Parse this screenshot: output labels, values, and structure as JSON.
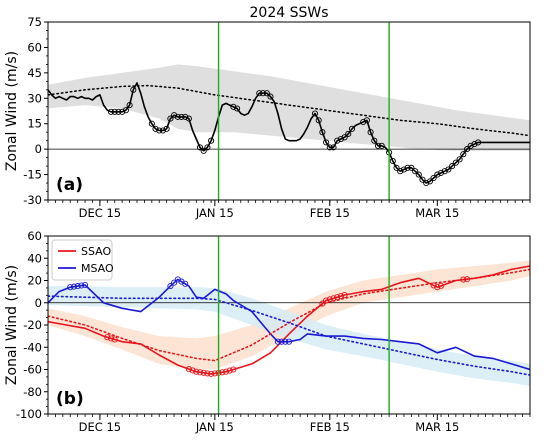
{
  "figure": {
    "title": "2024 SSWs",
    "ylabel": "Zonal Wind (m/s)"
  },
  "chart_data": [
    {
      "type": "line",
      "panel_label": "(a)",
      "title": "2024 SSWs",
      "ylabel": "Zonal Wind (m/s)",
      "xlabel": "",
      "x_unit": "day index (0 = Nov 22, 2023)",
      "xlim": [
        0,
        130
      ],
      "ylim": [
        -30,
        75
      ],
      "yticks": [
        -30,
        -15,
        0,
        15,
        30,
        45,
        60,
        75
      ],
      "xticks": [
        {
          "day": 14,
          "label": "DEC 15"
        },
        {
          "day": 45,
          "label": "JAN 15"
        },
        {
          "day": 76,
          "label": "FEB 15"
        },
        {
          "day": 105,
          "label": "MAR 15"
        }
      ],
      "grid": false,
      "zero_line": true,
      "event_lines": [
        46,
        92
      ],
      "event_line_color": "#22aa22",
      "band": {
        "color": "#d9d9d9",
        "x": [
          0,
          10,
          20,
          30,
          35,
          40,
          50,
          60,
          70,
          80,
          90,
          100,
          110,
          120,
          130
        ],
        "upper": [
          38,
          42,
          45,
          48,
          50,
          49,
          46,
          43,
          39,
          35,
          31,
          27,
          23,
          20,
          17
        ],
        "lower": [
          24,
          26,
          24,
          18,
          12,
          10,
          10,
          8,
          6,
          4,
          2,
          0,
          -1,
          -1,
          -1
        ]
      },
      "climatology": {
        "style": "dotted",
        "color": "#000000",
        "x": [
          0,
          10,
          20,
          27,
          35,
          45,
          55,
          65,
          75,
          85,
          95,
          105,
          115,
          125,
          130
        ],
        "y": [
          32,
          35,
          37,
          37.5,
          36,
          32,
          29,
          26,
          23,
          20,
          17,
          15,
          12,
          9.5,
          8
        ]
      },
      "series": [
        {
          "style": "solid",
          "color": "#000000",
          "x": [
            0,
            1,
            2,
            3,
            4,
            5,
            6,
            7,
            8,
            9,
            10,
            11,
            12,
            13,
            14,
            15,
            16,
            17,
            18,
            19,
            20,
            21,
            22,
            23,
            24,
            25,
            26,
            27,
            28,
            29,
            30,
            31,
            32,
            33,
            34,
            35,
            36,
            37,
            38,
            39,
            40,
            41,
            42,
            43,
            44,
            45,
            46,
            47,
            48,
            49,
            50,
            51,
            52,
            53,
            54,
            55,
            56,
            57,
            58,
            59,
            60,
            61,
            62,
            63,
            64,
            65,
            66,
            67,
            68,
            69,
            70,
            71,
            72,
            73,
            74,
            75,
            76,
            77,
            78,
            79,
            80,
            81,
            82,
            83,
            84,
            85,
            86,
            87,
            88,
            89,
            90,
            91,
            92,
            93,
            94,
            95,
            96,
            97,
            98,
            99,
            100,
            101,
            102,
            103,
            104,
            105,
            106,
            107,
            108,
            109,
            110,
            111,
            112,
            113,
            114,
            115,
            116,
            117,
            118,
            119,
            120,
            121,
            122,
            123,
            124,
            125,
            126,
            127,
            128,
            129,
            130
          ],
          "y": [
            35,
            32,
            30,
            31,
            30,
            29,
            31,
            31,
            30,
            31,
            30,
            30,
            29,
            31,
            32,
            26,
            23,
            22,
            22,
            22,
            22,
            23,
            26,
            35,
            39,
            33,
            25,
            19,
            15,
            12,
            11,
            11,
            12,
            18,
            20,
            19,
            19,
            19,
            18,
            11,
            6,
            1,
            -1,
            1,
            5,
            11,
            19,
            26,
            27,
            26,
            25,
            24,
            21,
            20,
            21,
            25,
            30,
            33,
            33,
            33,
            31,
            28,
            21,
            12,
            6,
            5,
            5,
            5,
            6,
            9,
            13,
            18,
            21,
            17,
            10,
            4,
            1,
            1,
            5,
            6,
            7,
            9,
            12,
            14,
            15,
            16,
            17,
            10,
            5,
            2,
            2,
            1,
            -2,
            -7,
            -11,
            -13,
            -12,
            -11,
            -11,
            -13,
            -15,
            -18,
            -20,
            -19,
            -17,
            -15,
            -14,
            -13,
            -12,
            -10,
            -8,
            -6,
            -3,
            0,
            2,
            3,
            4,
            4,
            4,
            4,
            4,
            4,
            4,
            4,
            4,
            4,
            4,
            4,
            4,
            4,
            4
          ],
          "marker_ranges": [
            [
              17,
              23
            ],
            [
              28,
              38
            ],
            [
              41,
              44
            ],
            [
              50,
              51
            ],
            [
              57,
              60
            ],
            [
              72,
              82
            ],
            [
              85,
              90
            ],
            [
              92,
              109
            ],
            [
              110,
              116
            ]
          ]
        }
      ]
    },
    {
      "type": "line",
      "panel_label": "(b)",
      "ylabel": "Zonal Wind (m/s)",
      "xlabel": "",
      "x_unit": "day index (0 = Nov 22, 2023)",
      "xlim": [
        0,
        130
      ],
      "ylim": [
        -100,
        60
      ],
      "yticks": [
        -100,
        -80,
        -60,
        -40,
        -20,
        0,
        20,
        40,
        60
      ],
      "xticks": [
        {
          "day": 14,
          "label": "DEC 15"
        },
        {
          "day": 45,
          "label": "JAN 15"
        },
        {
          "day": 76,
          "label": "FEB 15"
        },
        {
          "day": 105,
          "label": "MAR 15"
        }
      ],
      "grid": false,
      "zero_line": true,
      "event_lines": [
        46,
        92
      ],
      "event_line_color": "#22aa22",
      "legend": {
        "placement": "top-left",
        "entries": [
          "SSAO",
          "MSAO"
        ]
      },
      "bands": [
        {
          "color": "#fbe1cc",
          "x": [
            0,
            10,
            20,
            30,
            40,
            45,
            55,
            65,
            75,
            85,
            95,
            105,
            115,
            125,
            130
          ],
          "upper": [
            -5,
            -12,
            -22,
            -30,
            -32,
            -30,
            -20,
            -5,
            10,
            20,
            25,
            30,
            33,
            36,
            38
          ],
          "lower": [
            -20,
            -30,
            -42,
            -55,
            -60,
            -60,
            -48,
            -30,
            -12,
            0,
            5,
            10,
            15,
            20,
            24
          ]
        },
        {
          "color": "#d6ebf5",
          "x": [
            0,
            10,
            20,
            30,
            40,
            45,
            55,
            65,
            75,
            85,
            95,
            105,
            115,
            125,
            130
          ],
          "upper": [
            15,
            15,
            14,
            14,
            14,
            13,
            4,
            -8,
            -20,
            -28,
            -35,
            -42,
            -48,
            -52,
            -55
          ],
          "lower": [
            -2,
            -3,
            -4,
            -5,
            -6,
            -8,
            -20,
            -32,
            -42,
            -48,
            -55,
            -62,
            -68,
            -72,
            -75
          ]
        }
      ],
      "series": [
        {
          "name": "SSAO",
          "color": "#e8141c",
          "style": "solid",
          "x": [
            0,
            5,
            10,
            15,
            20,
            25,
            30,
            35,
            40,
            44,
            46,
            48,
            50,
            55,
            60,
            63,
            65,
            70,
            75,
            80,
            85,
            90,
            95,
            100,
            105,
            110,
            115,
            120,
            125,
            130
          ],
          "y": [
            -17,
            -20,
            -23,
            -30,
            -35,
            -37,
            -47,
            -56,
            -62,
            -64,
            -63,
            -62,
            -60,
            -55,
            -45,
            -35,
            -28,
            -12,
            2,
            7,
            10,
            12,
            18,
            22,
            14,
            20,
            22,
            25,
            30,
            33
          ],
          "marker_ranges": [
            [
              16,
              18
            ],
            [
              38,
              50
            ],
            [
              74,
              80
            ],
            [
              104,
              106
            ],
            [
              112,
              113
            ]
          ]
        },
        {
          "name": "MSAO",
          "color": "#1a1ad6",
          "style": "solid",
          "x": [
            0,
            3,
            6,
            10,
            15,
            20,
            25,
            30,
            33,
            35,
            38,
            40,
            42,
            45,
            48,
            50,
            55,
            58,
            60,
            62,
            65,
            68,
            70,
            75,
            80,
            85,
            90,
            95,
            100,
            105,
            110,
            115,
            120,
            125,
            130
          ],
          "y": [
            0,
            10,
            14,
            16,
            0,
            -5,
            -8,
            5,
            15,
            21,
            15,
            5,
            4,
            12,
            8,
            2,
            -8,
            -20,
            -28,
            -35,
            -35,
            -33,
            -28,
            -30,
            -30,
            -32,
            -33,
            -35,
            -37,
            -45,
            -40,
            -48,
            -50,
            -55,
            -60
          ],
          "marker_ranges": [
            [
              6,
              10
            ],
            [
              33,
              37
            ],
            [
              62,
              65
            ]
          ]
        },
        {
          "name": "",
          "color": "#e8141c",
          "style": "dotted",
          "x": [
            0,
            10,
            20,
            30,
            40,
            45,
            55,
            65,
            75,
            85,
            95,
            105,
            115,
            125,
            130
          ],
          "y": [
            -12,
            -20,
            -32,
            -43,
            -50,
            -52,
            -38,
            -18,
            0,
            8,
            13,
            18,
            22,
            27,
            30
          ]
        },
        {
          "name": "",
          "color": "#1a1ad6",
          "style": "dotted",
          "x": [
            0,
            10,
            20,
            30,
            40,
            45,
            55,
            65,
            75,
            85,
            95,
            105,
            115,
            125,
            130
          ],
          "y": [
            6,
            5,
            4,
            4,
            4,
            3,
            -7,
            -18,
            -30,
            -37,
            -44,
            -51,
            -57,
            -62,
            -65
          ]
        }
      ]
    }
  ]
}
